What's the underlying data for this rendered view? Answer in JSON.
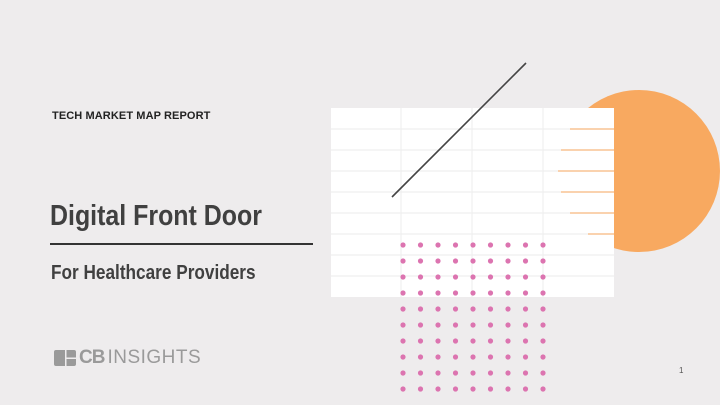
{
  "kicker": "TECH MARKET MAP REPORT",
  "title": "Digital Front Door",
  "subtitle": "For Healthcare Providers",
  "logo": {
    "mark": "CB",
    "text": "INSIGHTS"
  },
  "page_number": "1",
  "colors": {
    "background": "#eeeced",
    "accent_orange": "#f8a960",
    "accent_pink": "#dc74b0",
    "text": "#404040"
  }
}
